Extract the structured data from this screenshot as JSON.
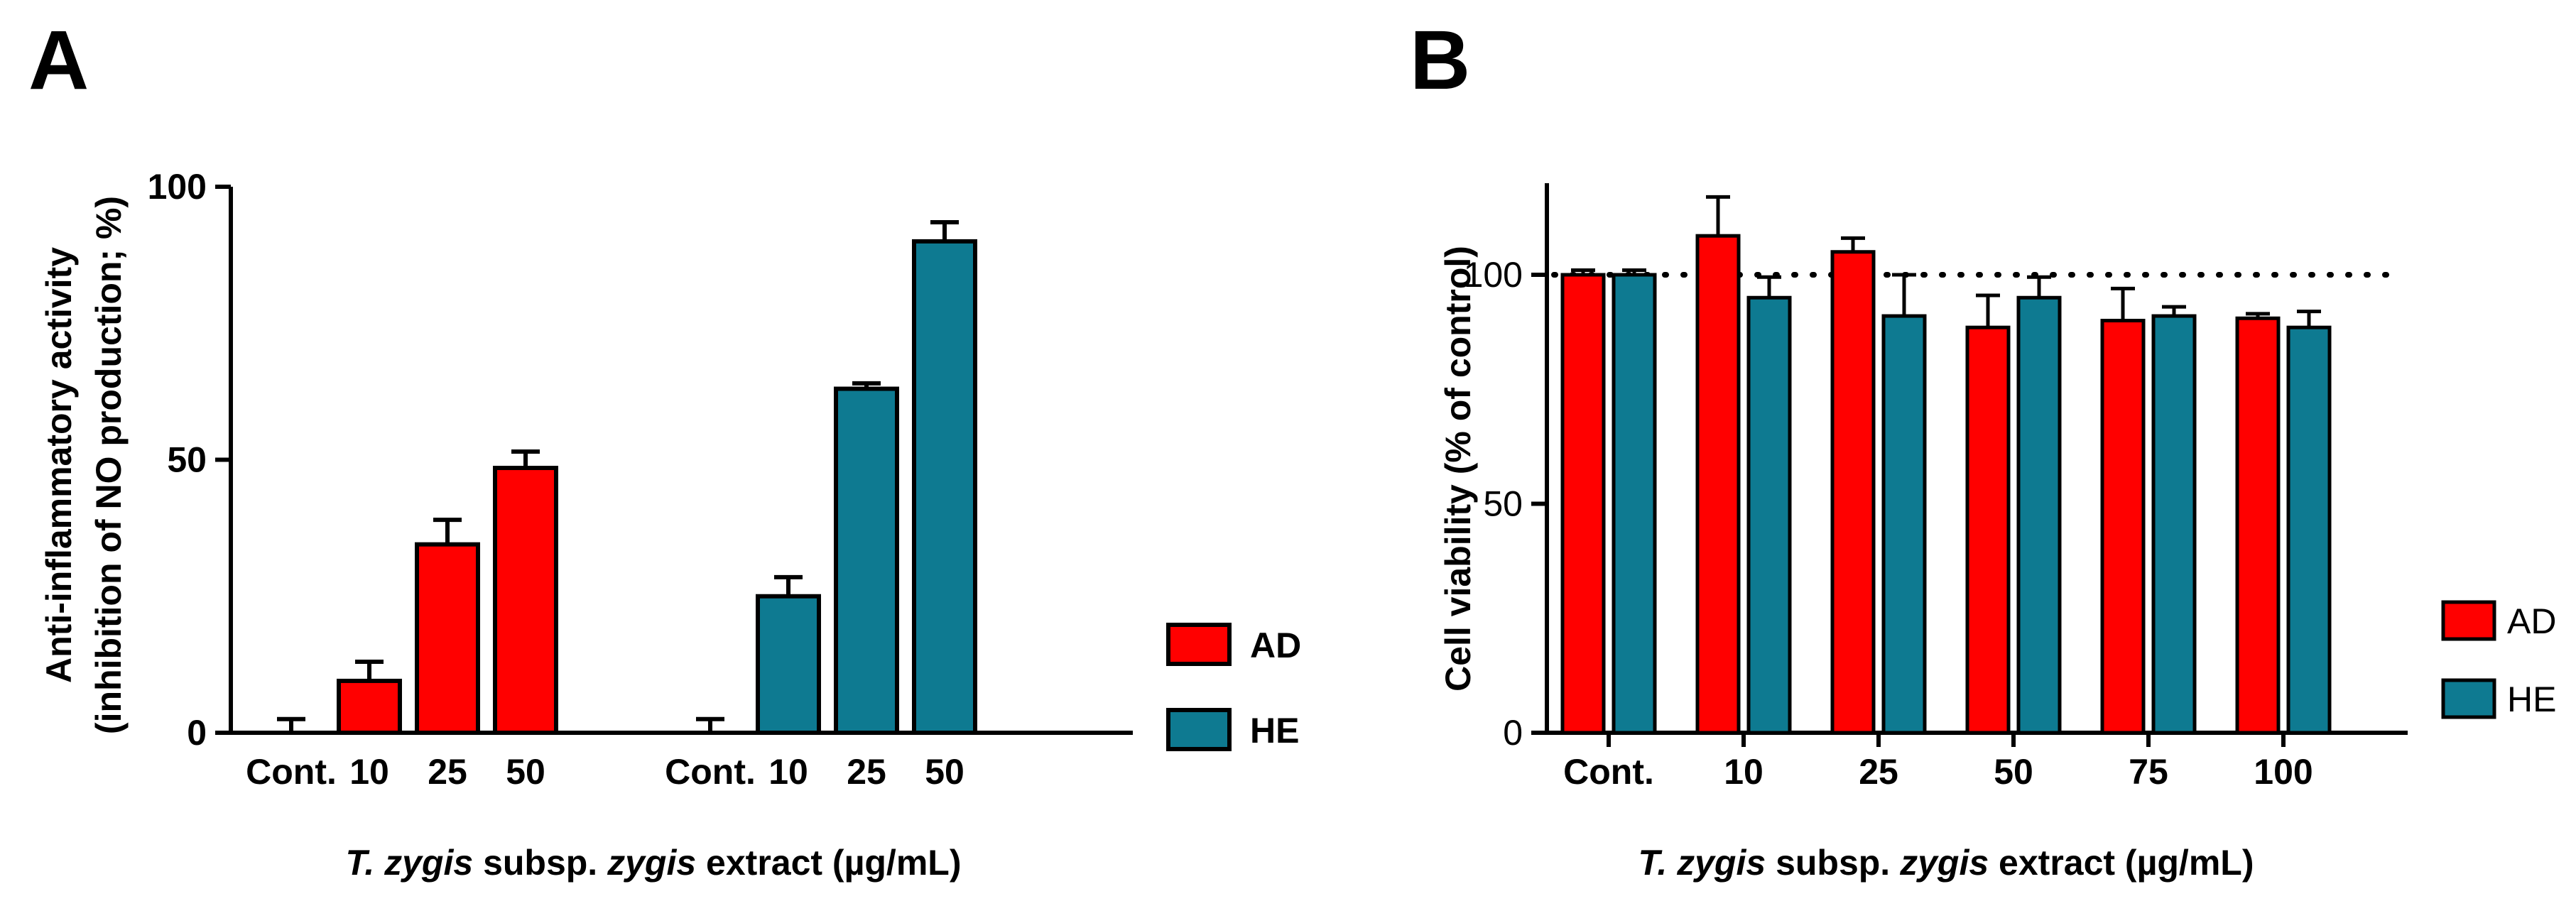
{
  "chart_data": [
    {
      "type": "bar",
      "panel": "A",
      "title": "",
      "ylabel_line1": "Anti-inflammatory activity",
      "ylabel_line2": "(inhibition of NO production; %)",
      "xlabel_italic_1": "T. zygis",
      "xlabel_mid": " subsp. ",
      "xlabel_italic_2": "zygis",
      "xlabel_tail": " extract (µg/mL)",
      "ylim": [
        0,
        100
      ],
      "yticks": [
        0,
        50,
        100
      ],
      "groups": [
        {
          "name": "AD",
          "color": "#ff0000",
          "categories": [
            "Cont.",
            "10",
            "25",
            "50"
          ],
          "values": [
            0,
            9.5,
            34.5,
            48.5
          ],
          "errors": [
            2.5,
            3.5,
            4.5,
            3
          ]
        },
        {
          "name": "HE",
          "color": "#0e7a91",
          "categories": [
            "Cont.",
            "10",
            "25",
            "50"
          ],
          "values": [
            0,
            25,
            63,
            90
          ],
          "errors": [
            2.5,
            3.5,
            1,
            3.5
          ]
        }
      ],
      "legend": [
        {
          "label": "AD",
          "color": "#ff0000"
        },
        {
          "label": "HE",
          "color": "#0e7a91"
        }
      ],
      "legend_position": "right"
    },
    {
      "type": "bar",
      "panel": "B",
      "title": "",
      "ylabel": "Cell viability (% of control)",
      "xlabel_italic_1": "T. zygis",
      "xlabel_mid": " subsp. ",
      "xlabel_italic_2": "zygis",
      "xlabel_tail": " extract (µg/mL)",
      "ylim": [
        0,
        120
      ],
      "yticks": [
        0,
        50,
        100
      ],
      "reference_line": 100,
      "categories": [
        "Cont.",
        "10",
        "25",
        "50",
        "75",
        "100"
      ],
      "series": [
        {
          "name": "AD",
          "color": "#ff0000",
          "values": [
            100,
            108.5,
            105,
            88.5,
            90,
            90.5
          ],
          "errors": [
            1,
            8.5,
            3,
            7,
            7,
            1
          ]
        },
        {
          "name": "HE",
          "color": "#0e7a91",
          "values": [
            100,
            95,
            91,
            95,
            91,
            88.5
          ],
          "errors": [
            1,
            4.5,
            9,
            4.5,
            2,
            3.5
          ]
        }
      ],
      "legend": [
        {
          "label": "AD",
          "color": "#ff0000"
        },
        {
          "label": "HE",
          "color": "#0e7a91"
        }
      ],
      "legend_position": "right"
    }
  ]
}
